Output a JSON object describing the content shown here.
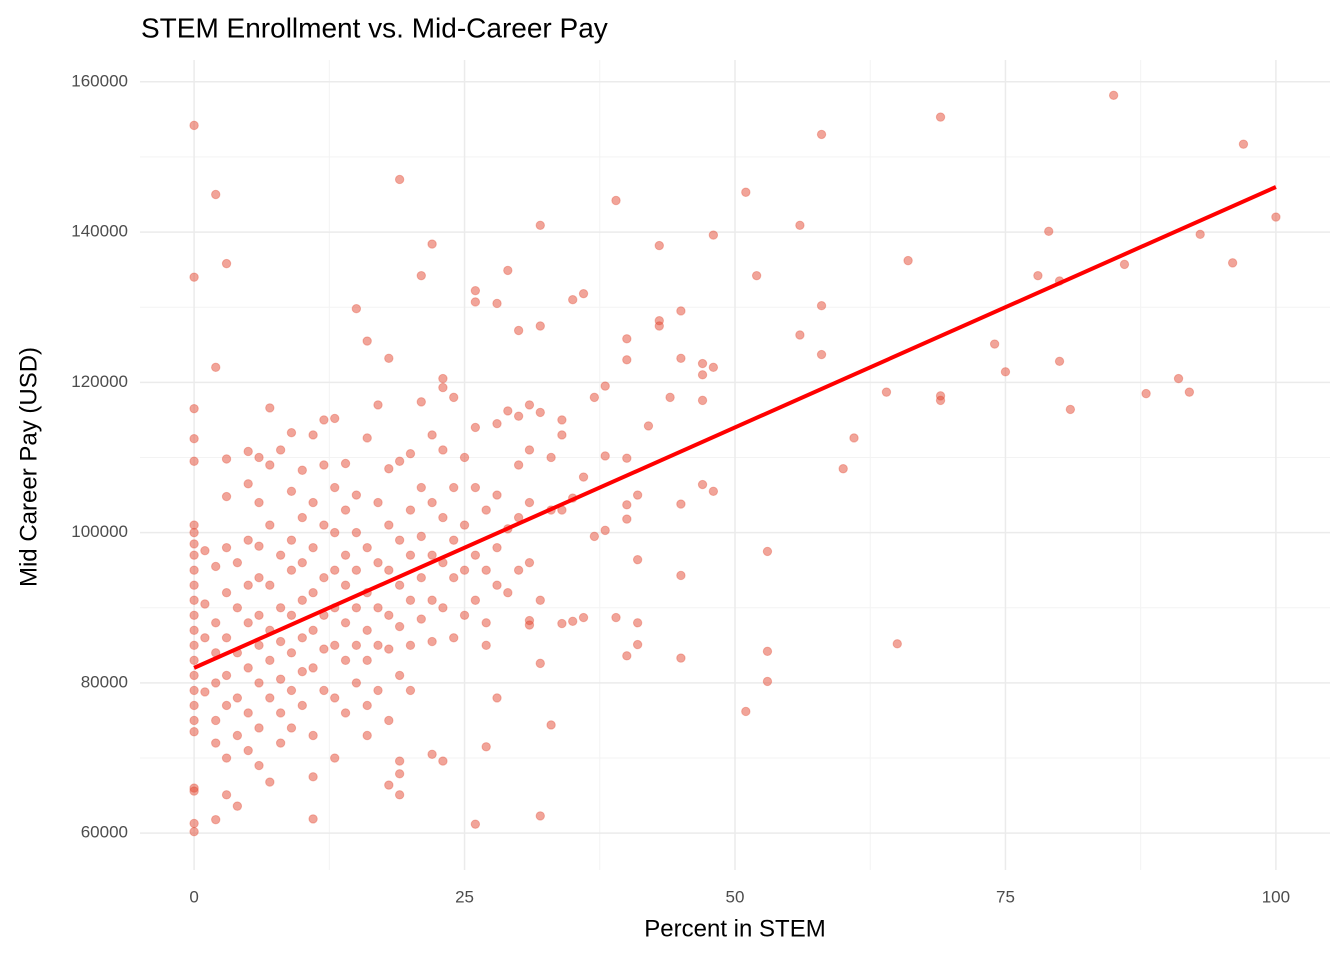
{
  "chart_data": {
    "type": "scatter",
    "title": "STEM Enrollment vs. Mid-Career Pay",
    "x_label": "Percent in STEM",
    "y_label": "Mid Career Pay (USD)",
    "color": "#e34a33",
    "xlim": [
      -5,
      105
    ],
    "ylim": [
      55100,
      162900
    ],
    "xticks": [
      0,
      25,
      50,
      75,
      100
    ],
    "yticks": [
      60000,
      80000,
      100000,
      120000,
      140000,
      160000
    ],
    "xminor": [
      12.5,
      37.5,
      62.5,
      87.5
    ],
    "yminor": [
      70000,
      90000,
      110000,
      130000,
      150000
    ],
    "grid": true,
    "x": [
      0,
      0,
      2,
      3,
      2,
      0,
      0,
      0,
      19,
      22,
      21,
      15,
      16,
      18,
      26,
      26,
      29,
      28,
      32,
      32,
      30,
      35,
      36,
      39,
      40,
      40,
      43,
      43,
      43,
      45,
      45,
      48,
      47,
      48,
      47,
      38,
      37,
      44,
      47,
      42,
      51,
      52,
      56,
      58,
      58,
      56,
      58,
      61,
      60,
      64,
      66,
      69,
      69,
      69,
      74,
      75,
      78,
      79,
      80,
      80,
      81,
      85,
      86,
      88,
      91,
      92,
      93,
      96,
      97,
      100,
      53,
      65,
      53,
      53,
      51,
      45,
      45,
      40,
      41,
      41,
      41,
      39,
      36,
      35,
      34,
      31,
      31,
      32,
      32,
      26,
      27,
      28,
      33,
      22,
      23,
      19,
      19,
      19,
      18,
      11,
      4,
      3,
      2,
      0,
      0,
      0,
      0,
      41,
      40,
      38,
      47,
      48,
      45,
      40,
      40,
      37,
      38,
      35,
      34,
      36,
      0,
      0,
      0,
      0,
      0,
      0,
      0,
      0,
      0,
      0,
      0,
      0,
      0,
      0,
      0,
      0,
      1,
      1,
      1,
      1,
      2,
      2,
      2,
      2,
      2,
      2,
      3,
      3,
      3,
      3,
      3,
      3,
      3,
      3,
      4,
      4,
      4,
      4,
      4,
      5,
      5,
      5,
      5,
      5,
      5,
      5,
      5,
      6,
      6,
      6,
      6,
      6,
      6,
      6,
      6,
      6,
      7,
      7,
      7,
      7,
      7,
      7,
      7,
      7,
      8,
      8,
      8,
      8,
      8,
      8,
      8,
      9,
      9,
      9,
      9,
      9,
      9,
      9,
      9,
      10,
      10,
      10,
      10,
      10,
      10,
      10,
      11,
      11,
      11,
      11,
      11,
      11,
      11,
      11,
      12,
      12,
      12,
      12,
      12,
      12,
      12,
      13,
      13,
      13,
      13,
      13,
      13,
      13,
      13,
      14,
      14,
      14,
      14,
      14,
      14,
      14,
      15,
      15,
      15,
      15,
      15,
      15,
      16,
      16,
      16,
      16,
      16,
      16,
      16,
      17,
      17,
      17,
      17,
      17,
      17,
      18,
      18,
      18,
      18,
      18,
      18,
      19,
      19,
      19,
      19,
      19,
      20,
      20,
      20,
      20,
      20,
      20,
      21,
      21,
      21,
      21,
      21,
      22,
      22,
      22,
      22,
      22,
      23,
      23,
      23,
      23,
      23,
      23,
      24,
      24,
      24,
      24,
      24,
      25,
      25,
      25,
      25,
      26,
      26,
      26,
      26,
      27,
      27,
      27,
      27,
      28,
      28,
      28,
      28,
      29,
      29,
      29,
      30,
      30,
      30,
      30,
      31,
      31,
      31,
      31,
      32,
      32,
      33,
      33,
      34,
      34
    ],
    "values": [
      154200,
      134000,
      145000,
      135800,
      122000,
      116500,
      112500,
      109500,
      147000,
      138400,
      134200,
      129800,
      125500,
      123200,
      132200,
      130700,
      134900,
      130500,
      140900,
      127500,
      126900,
      131000,
      131800,
      144200,
      125800,
      123000,
      138200,
      128200,
      127500,
      129500,
      123200,
      139600,
      122500,
      122000,
      121000,
      119500,
      118000,
      118000,
      117600,
      114200,
      145300,
      134200,
      140900,
      153000,
      130200,
      126300,
      123700,
      112600,
      108500,
      118700,
      136200,
      155300,
      118200,
      117600,
      125100,
      121400,
      134200,
      140100,
      133500,
      122800,
      116400,
      158200,
      135700,
      118500,
      120500,
      118700,
      139700,
      135900,
      151700,
      142000,
      97500,
      85200,
      84200,
      80200,
      76200,
      94300,
      83300,
      83600,
      96400,
      88000,
      85100,
      88700,
      88700,
      88200,
      87900,
      88300,
      87700,
      82600,
      62300,
      61200,
      71500,
      78000,
      74400,
      70500,
      69600,
      69600,
      67900,
      65100,
      66400,
      61900,
      63600,
      65100,
      61800,
      61300,
      60200,
      66000,
      65600,
      105000,
      109900,
      110200,
      106400,
      105500,
      103800,
      103700,
      101800,
      99500,
      100300,
      104600,
      103000,
      107400,
      101000,
      100000,
      98500,
      97000,
      95000,
      93000,
      91000,
      89000,
      87000,
      85000,
      83000,
      81000,
      79000,
      77000,
      75000,
      73500,
      97600,
      90500,
      86000,
      78800,
      95500,
      88000,
      84000,
      80000,
      75000,
      72000,
      109800,
      104800,
      98000,
      92000,
      86000,
      81000,
      77000,
      70000,
      96000,
      90000,
      84000,
      78000,
      73000,
      110800,
      106500,
      99000,
      93000,
      88000,
      82000,
      76000,
      71000,
      110000,
      104000,
      98200,
      94000,
      89000,
      85000,
      80000,
      74000,
      69000,
      116600,
      109000,
      101000,
      93000,
      87000,
      83000,
      78000,
      66800,
      111000,
      97000,
      90000,
      85500,
      80500,
      76000,
      72000,
      113300,
      105500,
      99000,
      95000,
      89000,
      84000,
      79000,
      74000,
      108300,
      102000,
      96000,
      91000,
      86000,
      81500,
      77000,
      113000,
      104000,
      98000,
      92000,
      87000,
      82000,
      73000,
      67500,
      115000,
      109000,
      101000,
      94000,
      89000,
      84500,
      79000,
      115200,
      106000,
      100000,
      95000,
      90000,
      85000,
      78000,
      70000,
      109200,
      103000,
      97000,
      93000,
      88000,
      83000,
      76000,
      105000,
      100000,
      95000,
      90000,
      85000,
      80000,
      112600,
      98000,
      92000,
      87000,
      83000,
      77000,
      73000,
      117000,
      104000,
      96000,
      90000,
      85000,
      79000,
      108500,
      101000,
      95000,
      89000,
      84500,
      75000,
      109500,
      99000,
      93000,
      87500,
      81000,
      110500,
      103000,
      97000,
      91000,
      85000,
      79000,
      117400,
      106000,
      99500,
      94000,
      88500,
      113000,
      104000,
      97000,
      91000,
      85500,
      111000,
      102000,
      96000,
      90000,
      120500,
      119300,
      118000,
      106000,
      99000,
      94000,
      86000,
      110000,
      101000,
      95000,
      89000,
      114000,
      106000,
      97000,
      91000,
      103000,
      95000,
      88000,
      85000,
      114500,
      105000,
      98000,
      93000,
      116200,
      100500,
      92000,
      115500,
      109000,
      102000,
      95000,
      117000,
      111000,
      104000,
      96000,
      116000,
      91000,
      110000,
      103000,
      115000,
      113000
    ],
    "fit": {
      "type": "line",
      "color": "#ff0000",
      "x": [
        0,
        100
      ],
      "values": [
        82000,
        146000
      ]
    }
  }
}
